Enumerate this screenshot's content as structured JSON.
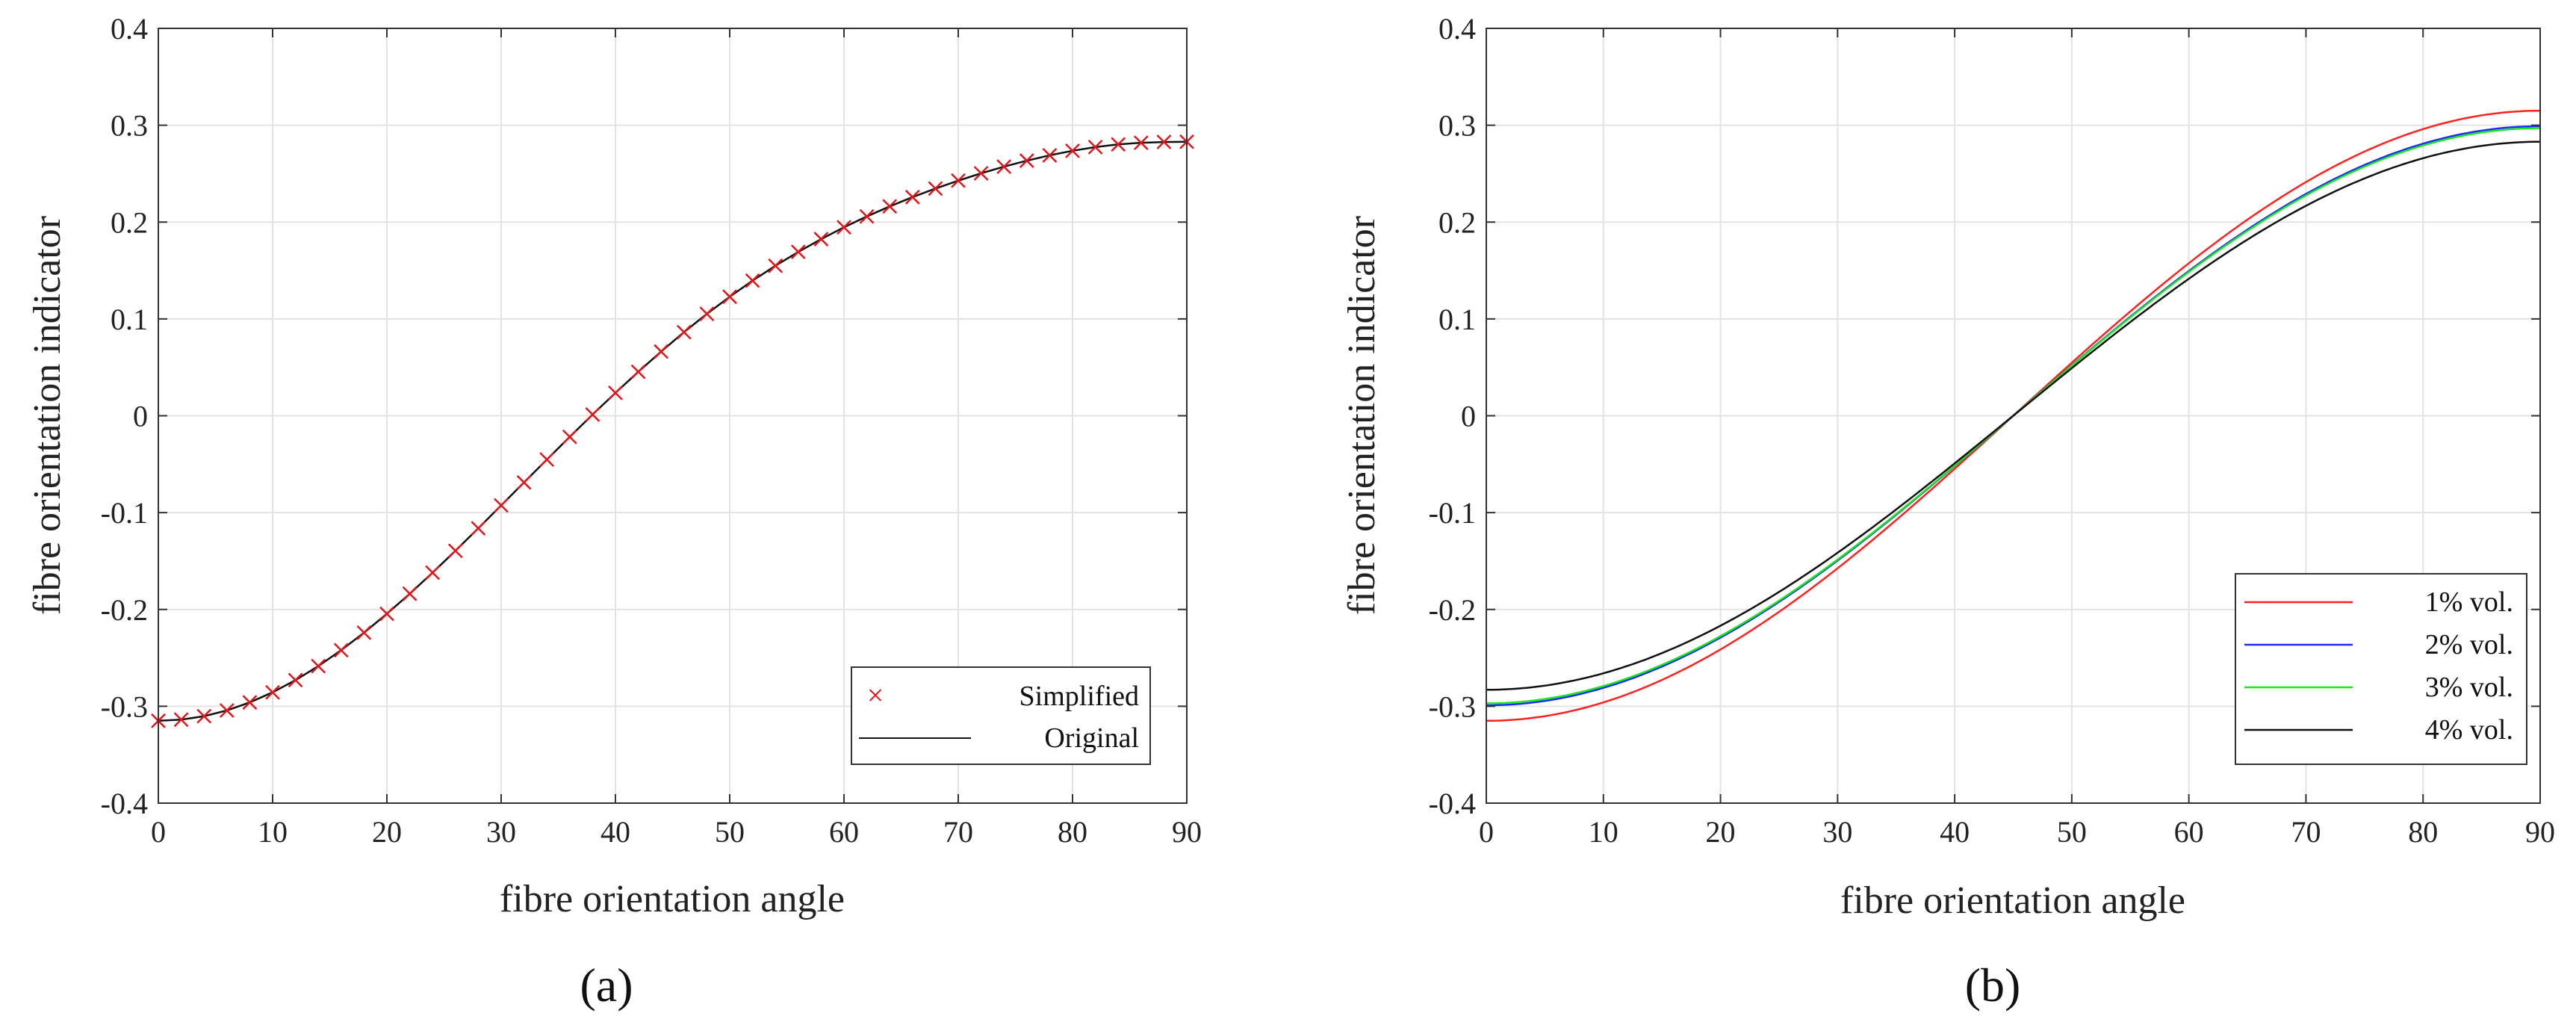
{
  "chart_data": [
    {
      "panel_label": "(a)",
      "type": "line",
      "xlabel": "fibre orientation angle",
      "ylabel": "fibre orientation indicator",
      "xlim": [
        0,
        90
      ],
      "ylim": [
        -0.4,
        0.4
      ],
      "grid": true,
      "xticks": [
        0,
        10,
        20,
        30,
        40,
        50,
        60,
        70,
        80,
        90
      ],
      "xtick_labels": [
        "0",
        "10",
        "20",
        "30",
        "40",
        "50",
        "60",
        "70",
        "80",
        "90"
      ],
      "yticks": [
        -0.4,
        -0.3,
        -0.2,
        -0.1,
        0,
        0.1,
        0.2,
        0.3,
        0.4
      ],
      "ytick_labels": [
        "-0.4",
        "-0.3",
        "-0.2",
        "-0.1",
        "0",
        "0.1",
        "0.2",
        "0.3",
        "0.4"
      ],
      "legend_position": "bottom-right",
      "series": [
        {
          "name": "Simplified",
          "style": "markers",
          "color": "#e0161b",
          "x": [
            0,
            2,
            4,
            6,
            8,
            10,
            12,
            14,
            16,
            18,
            20,
            22,
            24,
            26,
            28,
            30,
            32,
            34,
            36,
            38,
            40,
            42,
            44,
            46,
            48,
            50,
            52,
            54,
            56,
            58,
            60,
            62,
            64,
            66,
            68,
            70,
            72,
            74,
            76,
            78,
            80,
            82,
            84,
            86,
            88,
            90
          ],
          "y": [
            -0.315,
            -0.3138,
            -0.3102,
            -0.3043,
            -0.296,
            -0.2856,
            -0.273,
            -0.2585,
            -0.2421,
            -0.224,
            -0.2045,
            -0.1838,
            -0.162,
            -0.1394,
            -0.1162,
            -0.0926,
            -0.0689,
            -0.0452,
            -0.0218,
            0.0012,
            0.0236,
            0.0454,
            0.0663,
            0.0863,
            0.1052,
            0.1229,
            0.1395,
            0.1549,
            0.1692,
            0.1824,
            0.1946,
            0.2058,
            0.2162,
            0.2258,
            0.2346,
            0.2428,
            0.2503,
            0.2572,
            0.2634,
            0.2689,
            0.2736,
            0.2774,
            0.2802,
            0.2819,
            0.2827,
            0.2829
          ]
        },
        {
          "name": "Original",
          "style": "line",
          "color": "#111111",
          "x": [
            0,
            2,
            4,
            6,
            8,
            10,
            12,
            14,
            16,
            18,
            20,
            22,
            24,
            26,
            28,
            30,
            32,
            34,
            36,
            38,
            40,
            42,
            44,
            46,
            48,
            50,
            52,
            54,
            56,
            58,
            60,
            62,
            64,
            66,
            68,
            70,
            72,
            74,
            76,
            78,
            80,
            82,
            84,
            86,
            88,
            90
          ],
          "y": [
            -0.315,
            -0.3138,
            -0.3102,
            -0.3043,
            -0.296,
            -0.2856,
            -0.273,
            -0.2585,
            -0.2421,
            -0.224,
            -0.2045,
            -0.1838,
            -0.162,
            -0.1394,
            -0.1162,
            -0.0926,
            -0.0689,
            -0.0452,
            -0.0218,
            0.0012,
            0.0236,
            0.0454,
            0.0663,
            0.0863,
            0.1052,
            0.1229,
            0.1395,
            0.1549,
            0.1692,
            0.1824,
            0.1946,
            0.2058,
            0.2162,
            0.2258,
            0.2346,
            0.2428,
            0.2503,
            0.2572,
            0.2634,
            0.2689,
            0.2736,
            0.2774,
            0.2802,
            0.2819,
            0.2827,
            0.2829
          ]
        }
      ]
    },
    {
      "panel_label": "(b)",
      "type": "line",
      "xlabel": "fibre orientation angle",
      "ylabel": "fibre orientation indicator",
      "xlim": [
        0,
        90
      ],
      "ylim": [
        -0.4,
        0.4
      ],
      "grid": true,
      "xticks": [
        0,
        10,
        20,
        30,
        40,
        50,
        60,
        70,
        80,
        90
      ],
      "xtick_labels": [
        "0",
        "10",
        "20",
        "30",
        "40",
        "50",
        "60",
        "70",
        "80",
        "90"
      ],
      "yticks": [
        -0.4,
        -0.3,
        -0.2,
        -0.1,
        0,
        0.1,
        0.2,
        0.3,
        0.4
      ],
      "ytick_labels": [
        "-0.4",
        "-0.3",
        "-0.2",
        "-0.1",
        "0",
        "0.1",
        "0.2",
        "0.3",
        "0.4"
      ],
      "legend_position": "bottom-right",
      "series": [
        {
          "name": "1% vol.",
          "color": "#ff2020",
          "amplitude": 0.315
        },
        {
          "name": "2% vol.",
          "color": "#1a2bff",
          "amplitude": 0.299
        },
        {
          "name": "3% vol.",
          "color": "#1ee61e",
          "amplitude": 0.297
        },
        {
          "name": "4% vol.",
          "color": "#111111",
          "amplitude": 0.283
        }
      ]
    }
  ]
}
